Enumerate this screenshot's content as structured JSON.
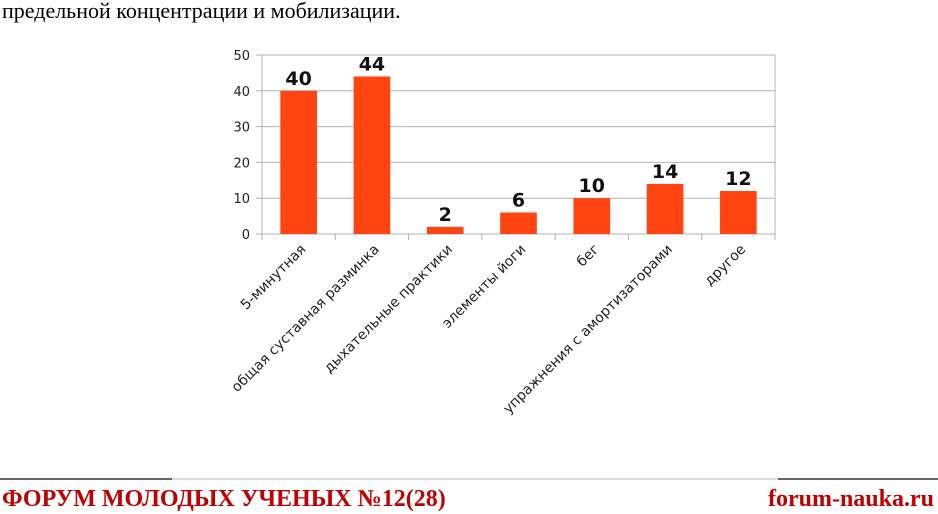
{
  "text": "предельной концентрации и мобилизации.",
  "chart_data": {
    "type": "bar",
    "categories": [
      "5-минутная",
      "общая суставная разминка",
      "дыхательные практики",
      "элементы йоги",
      "бег",
      "упражнения с амортизаторами",
      "другое"
    ],
    "values": [
      40,
      44,
      2,
      6,
      10,
      14,
      12
    ],
    "color": "#ff4411",
    "ylim": [
      0,
      50
    ],
    "yticks": [
      0,
      10,
      20,
      30,
      40,
      50
    ],
    "grid": true
  },
  "footer": {
    "left": "ФОРУМ МОЛОДЫХ УЧЕНЫХ №12(28)",
    "right": "forum-nauka.ru"
  }
}
